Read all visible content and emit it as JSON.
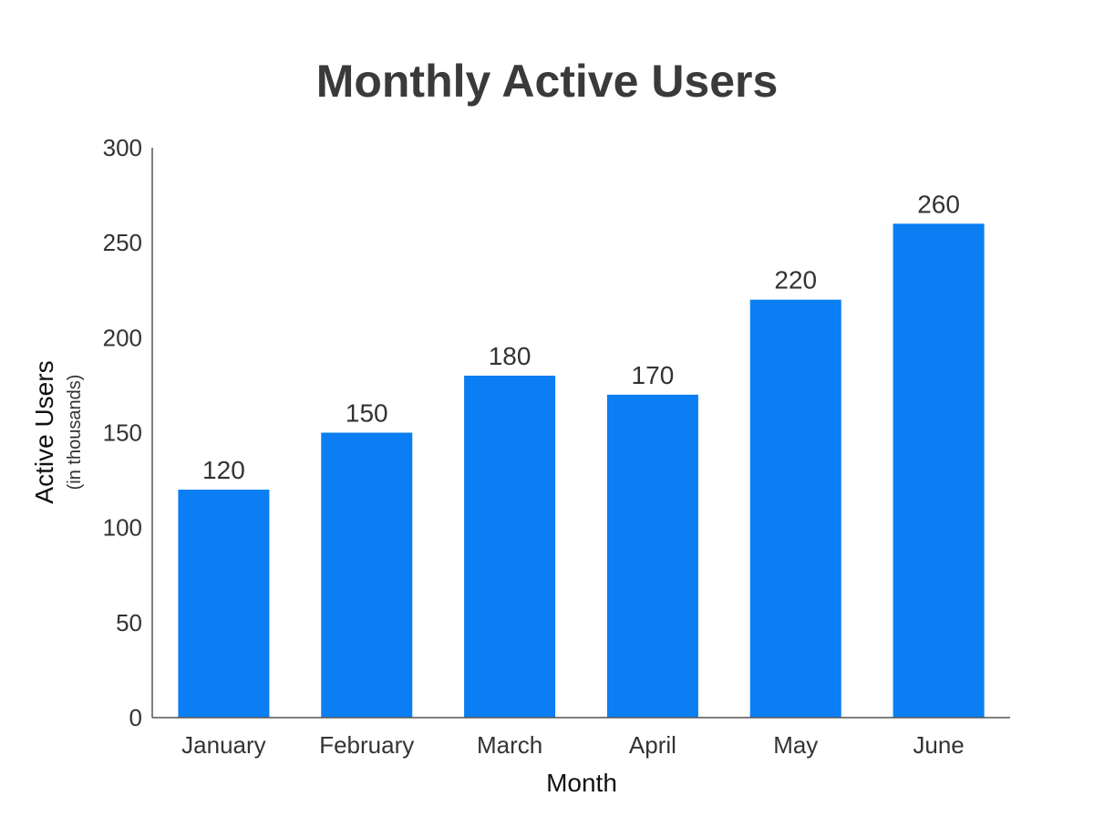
{
  "chart_data": {
    "type": "bar",
    "title": "Monthly Active Users",
    "xlabel": "Month",
    "ylabel": "Active Users",
    "ylabel_sub": "(in thousands)",
    "categories": [
      "January",
      "February",
      "March",
      "April",
      "May",
      "June"
    ],
    "values": [
      120,
      150,
      180,
      170,
      220,
      260
    ],
    "ylim": [
      0,
      300
    ],
    "yticks": [
      0,
      50,
      100,
      150,
      200,
      250,
      300
    ],
    "bar_color": "#0a7ef2",
    "grid": false,
    "data_labels": true
  }
}
